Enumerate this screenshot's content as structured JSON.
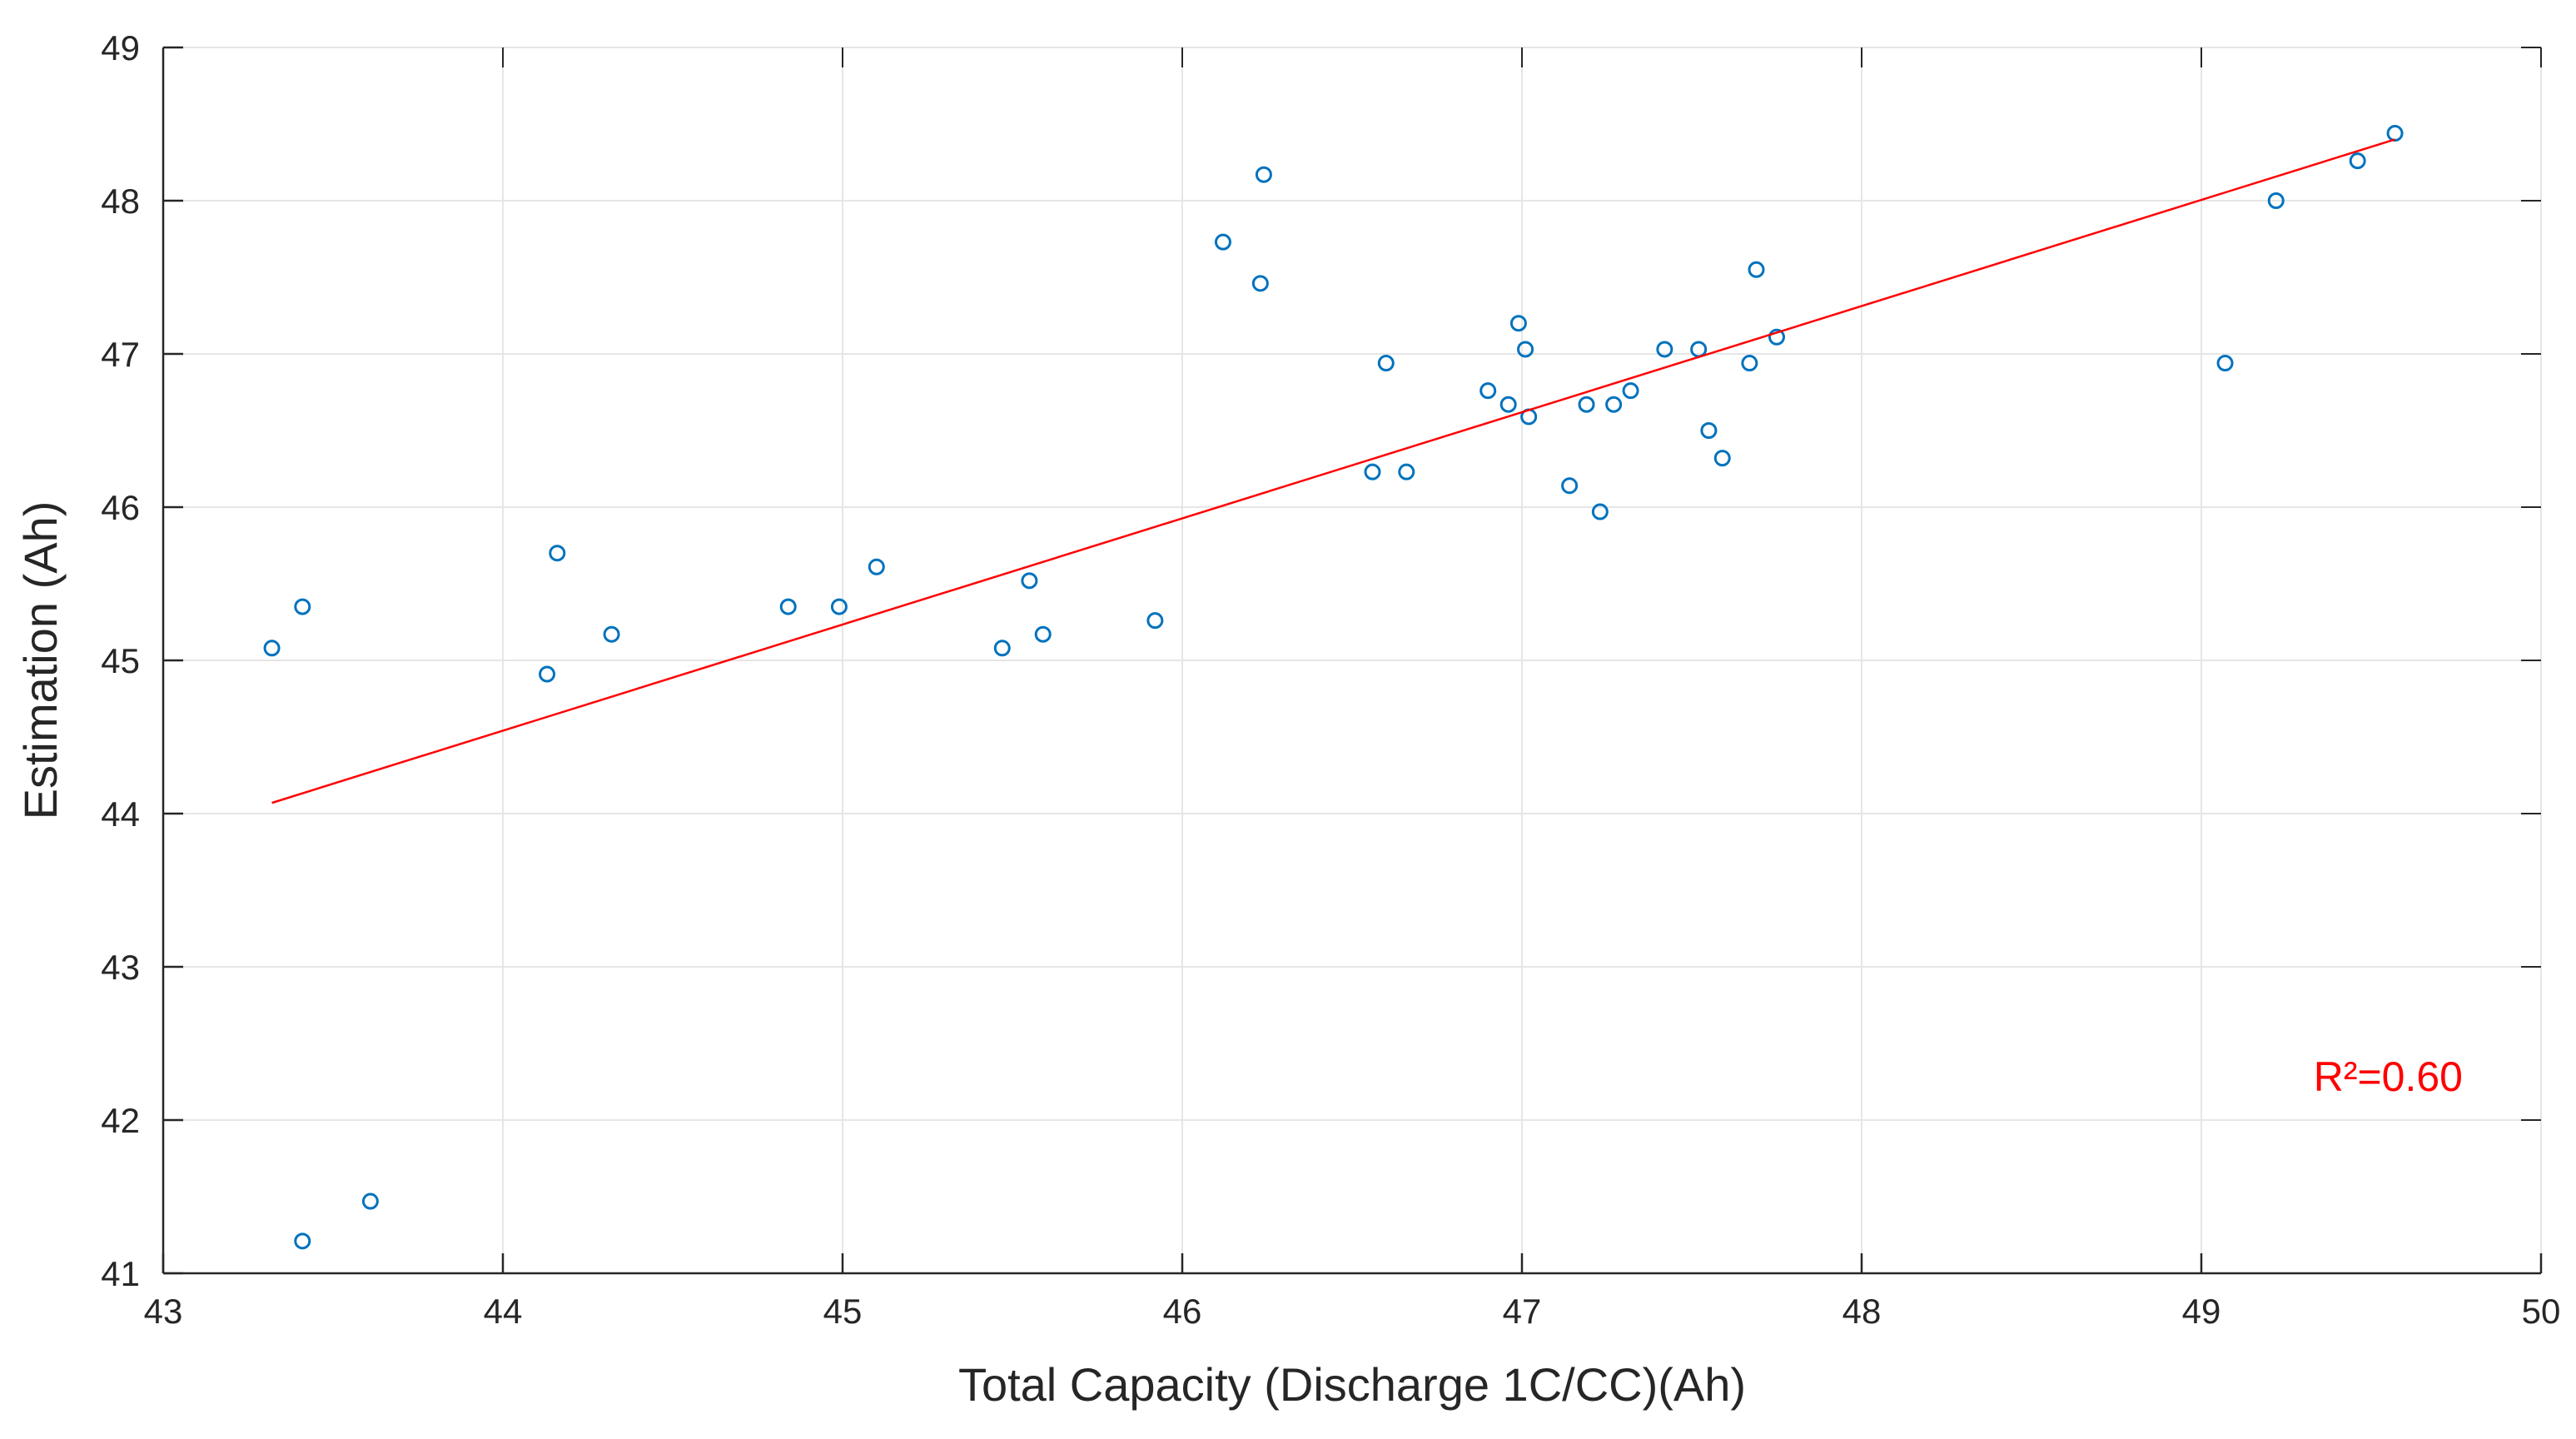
{
  "chart_data": {
    "type": "scatter",
    "title": "",
    "xlabel": "Total Capacity (Discharge 1C/CC)(Ah)",
    "ylabel": "Estimation (Ah)",
    "xlim": [
      43,
      50
    ],
    "ylim": [
      41,
      49
    ],
    "xticks": [
      43,
      44,
      45,
      46,
      47,
      48,
      49,
      50
    ],
    "yticks": [
      41,
      42,
      43,
      44,
      45,
      46,
      47,
      48,
      49
    ],
    "grid": true,
    "series": [
      {
        "name": "Estimation",
        "marker": "circle-open",
        "color": "#0072BD",
        "points": [
          {
            "x": 43.32,
            "y": 45.08
          },
          {
            "x": 43.41,
            "y": 45.35
          },
          {
            "x": 43.41,
            "y": 41.21
          },
          {
            "x": 43.61,
            "y": 41.47
          },
          {
            "x": 44.13,
            "y": 44.91
          },
          {
            "x": 44.16,
            "y": 45.7
          },
          {
            "x": 44.32,
            "y": 45.17
          },
          {
            "x": 44.84,
            "y": 45.35
          },
          {
            "x": 44.99,
            "y": 45.35
          },
          {
            "x": 45.1,
            "y": 45.61
          },
          {
            "x": 45.47,
            "y": 45.08
          },
          {
            "x": 45.55,
            "y": 45.52
          },
          {
            "x": 45.59,
            "y": 45.17
          },
          {
            "x": 45.92,
            "y": 45.26
          },
          {
            "x": 46.12,
            "y": 47.73
          },
          {
            "x": 46.23,
            "y": 47.46
          },
          {
            "x": 46.24,
            "y": 48.17
          },
          {
            "x": 46.56,
            "y": 46.23
          },
          {
            "x": 46.6,
            "y": 46.94
          },
          {
            "x": 46.66,
            "y": 46.23
          },
          {
            "x": 46.9,
            "y": 46.76
          },
          {
            "x": 46.96,
            "y": 46.67
          },
          {
            "x": 46.99,
            "y": 47.2
          },
          {
            "x": 47.01,
            "y": 47.03
          },
          {
            "x": 47.02,
            "y": 46.59
          },
          {
            "x": 47.14,
            "y": 46.14
          },
          {
            "x": 47.19,
            "y": 46.67
          },
          {
            "x": 47.23,
            "y": 45.97
          },
          {
            "x": 47.27,
            "y": 46.67
          },
          {
            "x": 47.32,
            "y": 46.76
          },
          {
            "x": 47.42,
            "y": 47.03
          },
          {
            "x": 47.52,
            "y": 47.03
          },
          {
            "x": 47.55,
            "y": 46.5
          },
          {
            "x": 47.59,
            "y": 46.32
          },
          {
            "x": 47.67,
            "y": 46.94
          },
          {
            "x": 47.69,
            "y": 47.55
          },
          {
            "x": 47.75,
            "y": 47.11
          },
          {
            "x": 49.07,
            "y": 46.94
          },
          {
            "x": 49.22,
            "y": 48.0
          },
          {
            "x": 49.46,
            "y": 48.26
          },
          {
            "x": 49.57,
            "y": 48.44
          }
        ]
      },
      {
        "name": "Linear fit",
        "type": "line",
        "color": "#FF0000",
        "x": [
          43.32,
          49.57
        ],
        "y": [
          44.07,
          48.4
        ]
      }
    ],
    "annotations": [
      {
        "text": "R²=0.60",
        "color": "#FF0000",
        "position": "bottom-right"
      }
    ]
  }
}
